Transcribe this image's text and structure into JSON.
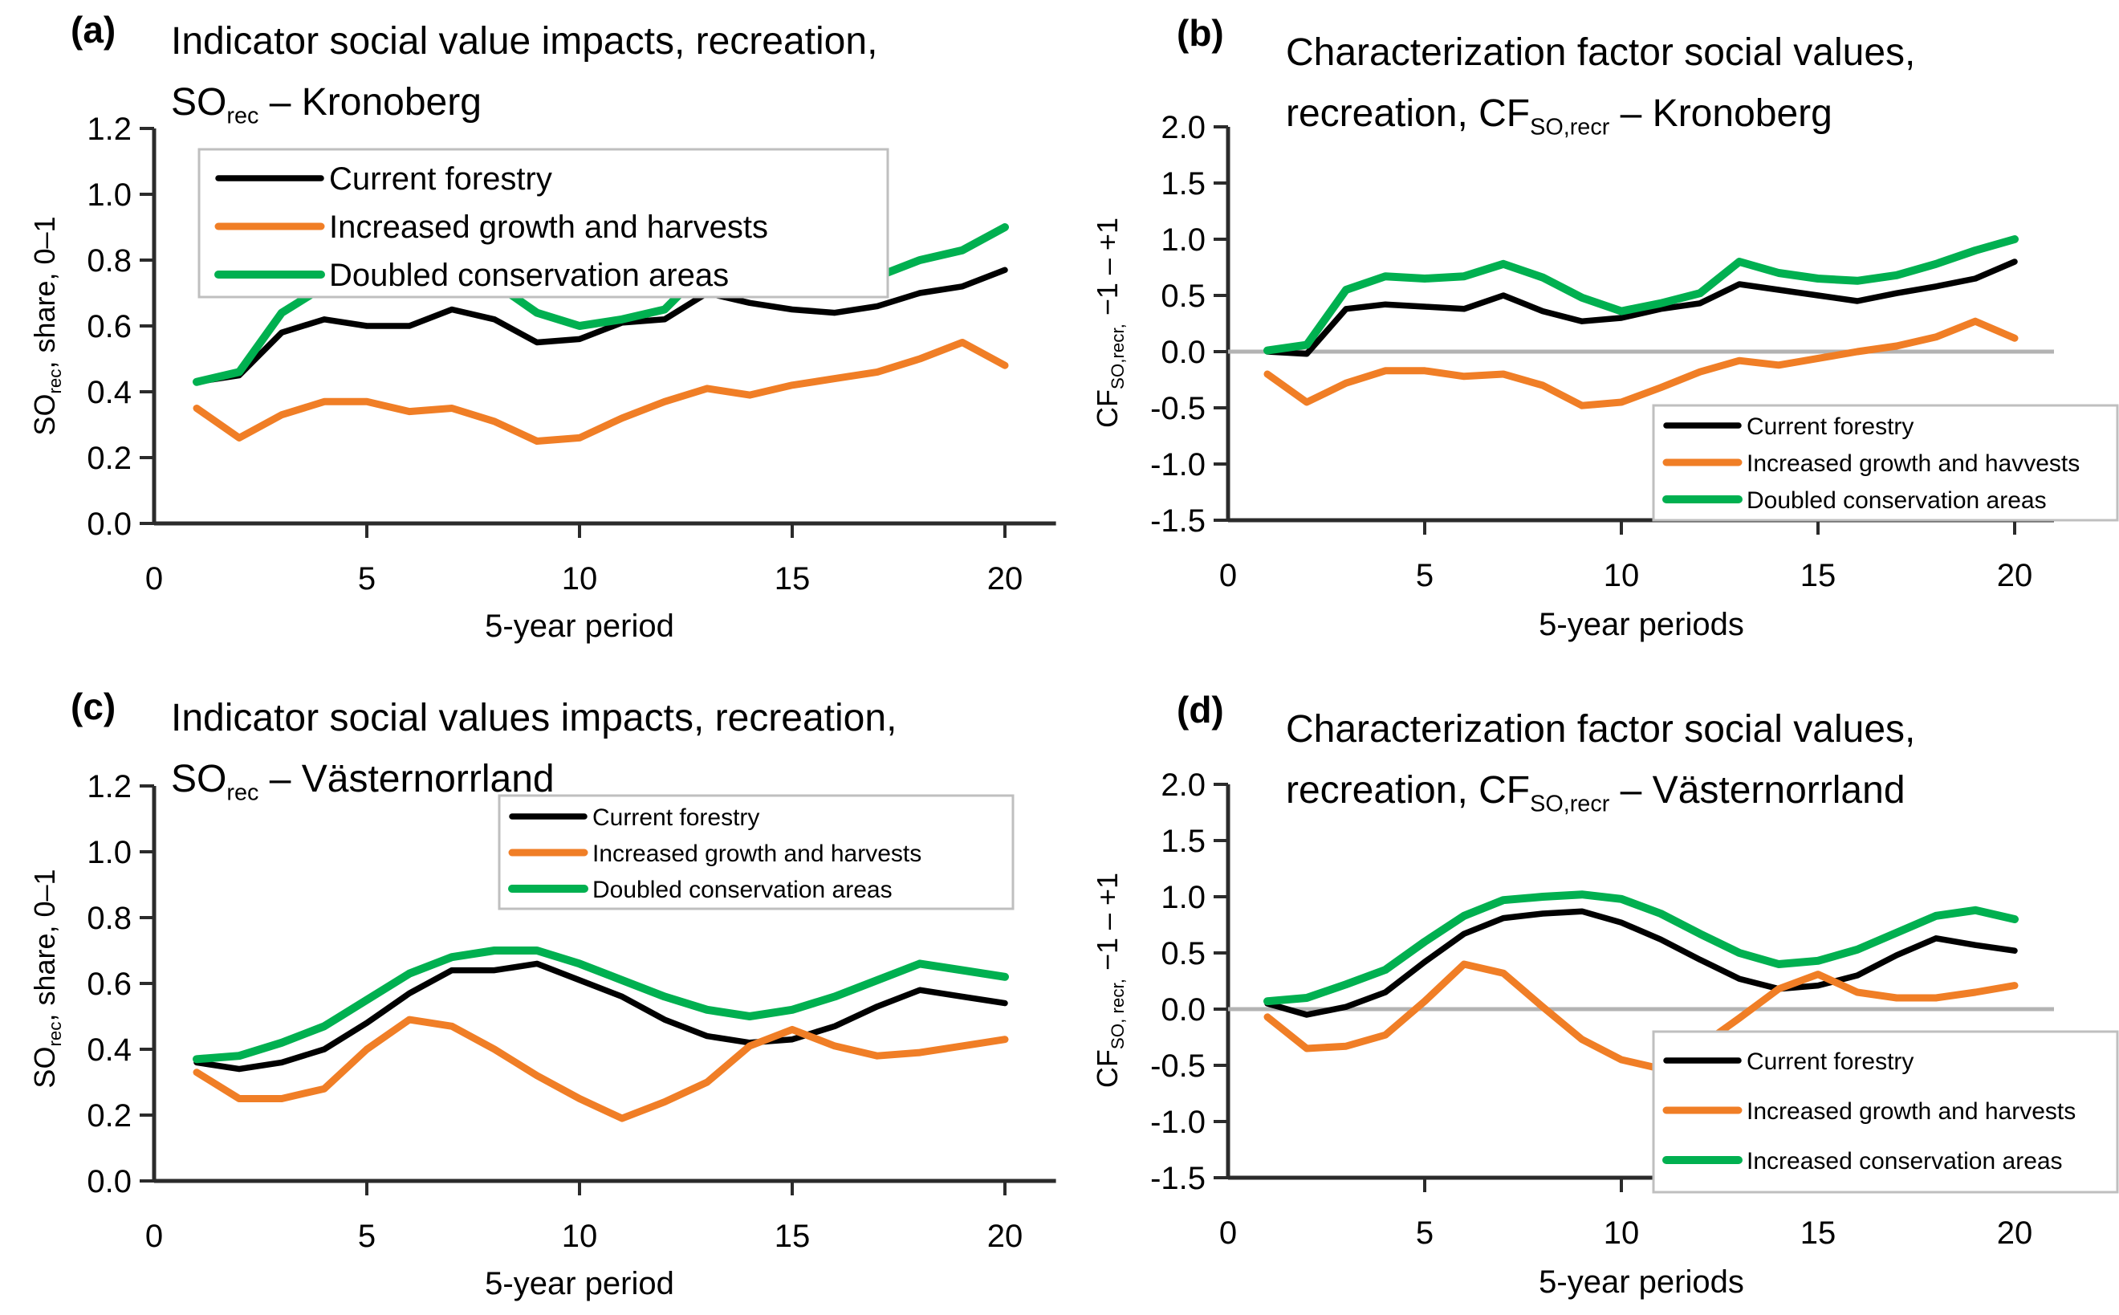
{
  "colors": {
    "black_series": "#000000",
    "orange_series": "#F07E26",
    "green_series": "#00B050",
    "axis": "#2B2B2B",
    "zero_line": "#B3B3B3",
    "legend_border": "#BFBFBF",
    "text": "#000000"
  },
  "chart_data": [
    {
      "id": "a",
      "type": "line",
      "panel_label": "(a)",
      "title_line1": "Indicator social value impacts, recreation,",
      "title_line2": {
        "prefix": "SO",
        "sub": "rec",
        "suffix": " – Kronoberg"
      },
      "ylabel": {
        "prefix": "SO",
        "sub": "rec",
        "suffix": ", share, 0–1"
      },
      "xlabel": "5-year period",
      "xlim": [
        0,
        21.2
      ],
      "ylim": [
        0,
        1.2
      ],
      "xtick_values": [
        0,
        5,
        10,
        15,
        20
      ],
      "xtick_labels": [
        "0",
        "5",
        "10",
        "15",
        "20"
      ],
      "ytick_values": [
        0,
        0.2,
        0.4,
        0.6,
        0.8,
        1.0,
        1.2
      ],
      "ytick_labels": [
        "0.0",
        "0.2",
        "0.4",
        "0.6",
        "0.8",
        "1.0",
        "1.2"
      ],
      "zero_line": false,
      "legend_position": "top-left",
      "x": [
        1,
        2,
        3,
        4,
        5,
        6,
        7,
        8,
        9,
        10,
        11,
        12,
        13,
        14,
        15,
        16,
        17,
        18,
        19,
        20
      ],
      "series": [
        {
          "name": "Current forestry",
          "color": "#000000",
          "values": [
            0.43,
            0.45,
            0.58,
            0.62,
            0.6,
            0.6,
            0.65,
            0.62,
            0.55,
            0.56,
            0.61,
            0.62,
            0.7,
            0.67,
            0.65,
            0.64,
            0.66,
            0.7,
            0.72,
            0.77
          ]
        },
        {
          "name": "Increased growth and harvests",
          "color": "#F07E26",
          "values": [
            0.35,
            0.26,
            0.33,
            0.37,
            0.37,
            0.34,
            0.35,
            0.31,
            0.25,
            0.26,
            0.32,
            0.37,
            0.41,
            0.39,
            0.42,
            0.44,
            0.46,
            0.5,
            0.55,
            0.48
          ]
        },
        {
          "name": "Doubled conservation areas",
          "color": "#00B050",
          "values": [
            0.43,
            0.46,
            0.64,
            0.72,
            0.71,
            0.73,
            0.76,
            0.73,
            0.64,
            0.6,
            0.62,
            0.65,
            0.78,
            0.73,
            0.71,
            0.72,
            0.75,
            0.8,
            0.83,
            0.9
          ]
        }
      ]
    },
    {
      "id": "b",
      "type": "line",
      "panel_label": "(b)",
      "title_line1": "Characterization factor social values,",
      "title_line2": {
        "prefix": "recreation, CF",
        "sub": "SO,recr",
        "suffix": " – Kronoberg"
      },
      "ylabel": {
        "prefix": "CF",
        "sub": "SO,recr,",
        "suffix": " −1 – +1"
      },
      "xlabel": "5-year periods",
      "xlim": [
        0,
        21
      ],
      "ylim": [
        -1.5,
        2.0
      ],
      "xtick_values": [
        0,
        5,
        10,
        15,
        20
      ],
      "xtick_labels": [
        "0",
        "5",
        "10",
        "15",
        "20"
      ],
      "ytick_values": [
        -1.5,
        -1.0,
        -0.5,
        0,
        0.5,
        1.0,
        1.5,
        2.0
      ],
      "ytick_labels": [
        "-1.5",
        "-1.0",
        "-0.5",
        "0.0",
        "0.5",
        "1.0",
        "1.5",
        "2.0"
      ],
      "zero_line": true,
      "legend_position": "bottom-right",
      "x": [
        1,
        2,
        3,
        4,
        5,
        6,
        7,
        8,
        9,
        10,
        11,
        12,
        13,
        14,
        15,
        16,
        17,
        18,
        19,
        20
      ],
      "series": [
        {
          "name": "Current forestry",
          "color": "#000000",
          "values": [
            0.0,
            -0.02,
            0.38,
            0.42,
            0.4,
            0.38,
            0.5,
            0.36,
            0.27,
            0.3,
            0.38,
            0.43,
            0.6,
            0.55,
            0.5,
            0.45,
            0.52,
            0.58,
            0.65,
            0.8
          ]
        },
        {
          "name": "Increased growth and havvests",
          "color": "#F07E26",
          "values": [
            -0.2,
            -0.45,
            -0.28,
            -0.17,
            -0.17,
            -0.22,
            -0.2,
            -0.3,
            -0.48,
            -0.45,
            -0.32,
            -0.18,
            -0.08,
            -0.12,
            -0.06,
            0.0,
            0.05,
            0.13,
            0.27,
            0.12
          ]
        },
        {
          "name": "Doubled conservation areas",
          "color": "#00B050",
          "values": [
            0.01,
            0.06,
            0.55,
            0.67,
            0.65,
            0.67,
            0.78,
            0.66,
            0.48,
            0.36,
            0.43,
            0.52,
            0.8,
            0.7,
            0.65,
            0.63,
            0.68,
            0.78,
            0.9,
            1.0
          ]
        }
      ]
    },
    {
      "id": "c",
      "type": "line",
      "panel_label": "(c)",
      "title_line1": "Indicator social values impacts, recreation,",
      "title_line2": {
        "prefix": "SO",
        "sub": "rec",
        "suffix": " – Västernorrland"
      },
      "ylabel": {
        "prefix": "SO",
        "sub": "rec",
        "suffix": ", share, 0–1"
      },
      "xlabel": "5-year period",
      "xlim": [
        0,
        21.2
      ],
      "ylim": [
        0,
        1.2
      ],
      "xtick_values": [
        0,
        5,
        10,
        15,
        20
      ],
      "xtick_labels": [
        "0",
        "5",
        "10",
        "15",
        "20"
      ],
      "ytick_values": [
        0,
        0.2,
        0.4,
        0.6,
        0.8,
        1.0,
        1.2
      ],
      "ytick_labels": [
        "0.0",
        "0.2",
        "0.4",
        "0.6",
        "0.8",
        "1.0",
        "1.2"
      ],
      "zero_line": false,
      "legend_position": "top-right",
      "x": [
        1,
        2,
        3,
        4,
        5,
        6,
        7,
        8,
        9,
        10,
        11,
        12,
        13,
        14,
        15,
        16,
        17,
        18,
        19,
        20
      ],
      "series": [
        {
          "name": "Current forestry",
          "color": "#000000",
          "values": [
            0.36,
            0.34,
            0.36,
            0.4,
            0.48,
            0.57,
            0.64,
            0.64,
            0.66,
            0.61,
            0.56,
            0.49,
            0.44,
            0.42,
            0.43,
            0.47,
            0.53,
            0.58,
            0.56,
            0.54
          ]
        },
        {
          "name": "Increased growth and harvests",
          "color": "#F07E26",
          "values": [
            0.33,
            0.25,
            0.25,
            0.28,
            0.4,
            0.49,
            0.47,
            0.4,
            0.32,
            0.25,
            0.19,
            0.24,
            0.3,
            0.41,
            0.46,
            0.41,
            0.38,
            0.39,
            0.41,
            0.43
          ]
        },
        {
          "name": "Doubled conservation areas",
          "color": "#00B050",
          "values": [
            0.37,
            0.38,
            0.42,
            0.47,
            0.55,
            0.63,
            0.68,
            0.7,
            0.7,
            0.66,
            0.61,
            0.56,
            0.52,
            0.5,
            0.52,
            0.56,
            0.61,
            0.66,
            0.64,
            0.62
          ]
        }
      ]
    },
    {
      "id": "d",
      "type": "line",
      "panel_label": "(d)",
      "title_line1": "Characterization factor social values,",
      "title_line2": {
        "prefix": "recreation, CF",
        "sub": "SO,recr",
        "suffix": " – Västernorrland"
      },
      "ylabel": {
        "prefix": "CF",
        "sub": "SO, recr,",
        "suffix": " −1 – +1"
      },
      "xlabel": "5-year periods",
      "xlim": [
        0,
        21
      ],
      "ylim": [
        -1.5,
        2.0
      ],
      "xtick_values": [
        0,
        5,
        10,
        15,
        20
      ],
      "xtick_labels": [
        "0",
        "5",
        "10",
        "15",
        "20"
      ],
      "ytick_values": [
        -1.5,
        -1.0,
        -0.5,
        0,
        0.5,
        1.0,
        1.5,
        2.0
      ],
      "ytick_labels": [
        "-1.5",
        "-1.0",
        "-0.5",
        "0.0",
        "0.5",
        "1.0",
        "1.5",
        "2.0"
      ],
      "zero_line": true,
      "legend_position": "bottom-right",
      "x": [
        1,
        2,
        3,
        4,
        5,
        6,
        7,
        8,
        9,
        10,
        11,
        12,
        13,
        14,
        15,
        16,
        17,
        18,
        19,
        20
      ],
      "series": [
        {
          "name": "Current forestry",
          "color": "#000000",
          "values": [
            0.05,
            -0.05,
            0.02,
            0.15,
            0.42,
            0.67,
            0.81,
            0.85,
            0.87,
            0.77,
            0.62,
            0.44,
            0.27,
            0.18,
            0.21,
            0.3,
            0.48,
            0.63,
            0.57,
            0.52
          ]
        },
        {
          "name": "Increased growth and harvests",
          "color": "#F07E26",
          "values": [
            -0.07,
            -0.35,
            -0.33,
            -0.23,
            0.07,
            0.4,
            0.32,
            0.02,
            -0.27,
            -0.45,
            -0.53,
            -0.33,
            -0.08,
            0.18,
            0.31,
            0.15,
            0.1,
            0.1,
            0.15,
            0.21
          ]
        },
        {
          "name": "Increased conservation areas",
          "color": "#00B050",
          "values": [
            0.07,
            0.1,
            0.22,
            0.35,
            0.6,
            0.83,
            0.97,
            1.0,
            1.02,
            0.98,
            0.85,
            0.67,
            0.5,
            0.4,
            0.43,
            0.53,
            0.68,
            0.83,
            0.88,
            0.8
          ]
        }
      ]
    }
  ]
}
